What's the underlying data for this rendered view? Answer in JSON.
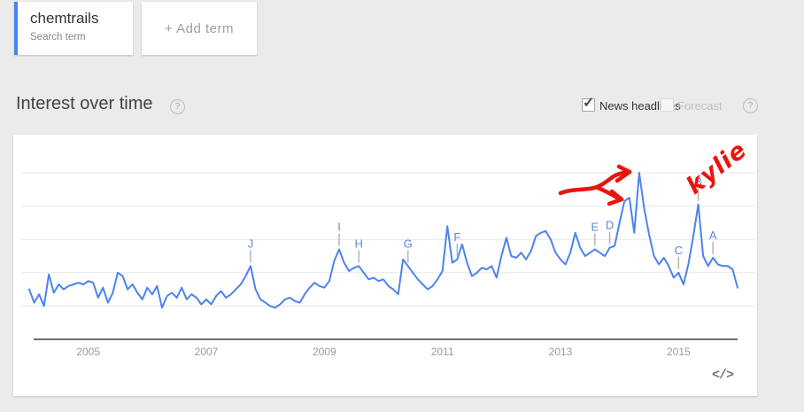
{
  "terms": {
    "term": "chemtrails",
    "term_type": "Search term",
    "add_term_label": "+ Add term"
  },
  "section": {
    "title": "Interest over time"
  },
  "controls": {
    "news_headlines_label": "News headlines",
    "news_headlines_checked": true,
    "forecast_label": "Forecast",
    "forecast_checked": false
  },
  "icons": {
    "help_glyph": "?",
    "check_glyph": "✓",
    "embed_glyph": "</>"
  },
  "colors": {
    "term_accent_bar": "#4285f4",
    "line": "#4c83ee",
    "marker_letter": "#5c87dd",
    "marker_tick": "#b5b5b5",
    "gridline": "#e7e7e7",
    "axis": "#6e6e6e",
    "tick_label": "#9b9b9b",
    "annotation_red": "#e8150d"
  },
  "annotations": {
    "text": "kylie",
    "paths": [
      "M618 66 C 630 61 643 63 656 60 C 664 58 671 52 678 47 C 683 44 689 43 694 42",
      "M696 42 L 684 36",
      "M696 42 L 682 52",
      "M660 60 C 668 63 675 67 682 71",
      "M687 73 L 676 64",
      "M687 73 L 673 78"
    ]
  },
  "chart_data": {
    "type": "line",
    "title": "Interest over time",
    "x_start": "2004-01",
    "x_end": "2016-01",
    "x_tick_labels": [
      "2005",
      "2007",
      "2009",
      "2011",
      "2013",
      "2015"
    ],
    "ylim": [
      0,
      100
    ],
    "grid": "horizontal",
    "y_gridline_values": [
      20,
      40,
      60,
      80,
      100
    ],
    "series": [
      {
        "name": "chemtrails",
        "values": [
          30,
          22,
          27,
          20,
          39,
          28,
          33,
          30,
          32,
          33,
          34,
          33,
          35,
          34,
          25,
          31,
          22,
          28,
          40,
          38,
          30,
          33,
          28,
          24,
          31,
          27,
          32,
          19,
          26,
          28,
          25,
          31,
          24,
          27,
          25,
          21,
          24,
          21,
          26,
          29,
          25,
          27,
          30,
          33,
          38,
          44,
          30,
          24,
          22,
          20,
          19,
          21,
          24,
          25,
          23,
          22,
          27,
          31,
          34,
          32,
          31,
          35,
          47,
          54,
          46,
          41,
          43,
          44,
          40,
          36,
          37,
          35,
          36,
          32,
          30,
          27,
          48,
          44,
          40,
          36,
          33,
          30,
          32,
          36,
          41,
          68,
          46,
          48,
          57,
          46,
          38,
          40,
          43,
          42,
          44,
          37,
          50,
          61,
          50,
          49,
          52,
          48,
          53,
          62,
          64,
          65,
          60,
          52,
          48,
          45,
          52,
          64,
          55,
          50,
          52,
          54,
          52,
          50,
          55,
          56,
          70,
          83,
          85,
          64,
          100,
          79,
          63,
          50,
          45,
          49,
          44,
          37,
          40,
          33,
          45,
          62,
          81,
          50,
          44,
          49,
          45,
          44,
          44,
          42,
          31
        ]
      }
    ],
    "markers": [
      {
        "label": "J",
        "month_index": 45,
        "value": 44
      },
      {
        "label": "I",
        "month_index": 63,
        "value": 54
      },
      {
        "label": "H",
        "month_index": 67,
        "value": 44
      },
      {
        "label": "G",
        "month_index": 77,
        "value": 44
      },
      {
        "label": "F",
        "month_index": 87,
        "value": 48
      },
      {
        "label": "E",
        "month_index": 115,
        "value": 54
      },
      {
        "label": "D",
        "month_index": 118,
        "value": 55
      },
      {
        "label": "C",
        "month_index": 132,
        "value": 40
      },
      {
        "label": "B",
        "month_index": 136,
        "value": 81
      },
      {
        "label": "A",
        "month_index": 139,
        "value": 49
      }
    ]
  }
}
